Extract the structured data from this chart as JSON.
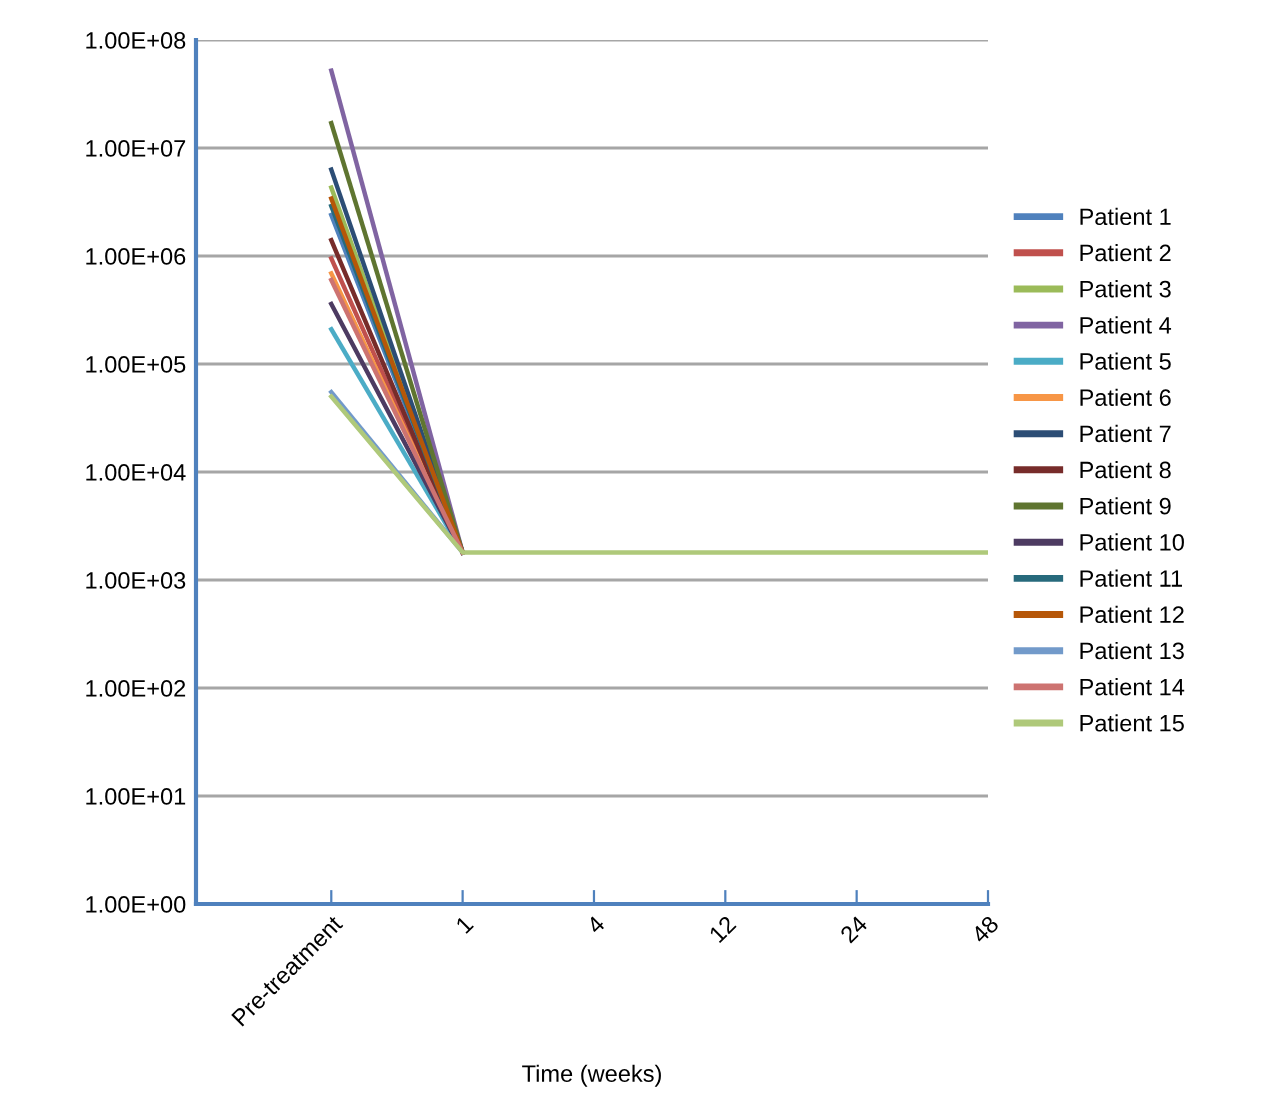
{
  "chart_data": {
    "type": "line",
    "xlabel": "Time (weeks)",
    "categories": [
      "Pre-treatment",
      "1",
      "4",
      "12",
      "24",
      "48"
    ],
    "log": "y",
    "ylim": [
      1,
      100000000
    ],
    "yticks": [
      {
        "value": 1,
        "label": "1.00E+00"
      },
      {
        "value": 10,
        "label": "1.00E+01"
      },
      {
        "value": 100,
        "label": "1.00E+02"
      },
      {
        "value": 1000,
        "label": "1.00E+03"
      },
      {
        "value": 10000,
        "label": "1.00E+04"
      },
      {
        "value": 100000,
        "label": "1.00E+05"
      },
      {
        "value": 1000000,
        "label": "1.00E+06"
      },
      {
        "value": 10000000,
        "label": "1.00E+07"
      },
      {
        "value": 100000000,
        "label": "1.00E+08"
      }
    ],
    "grid": "y",
    "legend": "right",
    "marker": "none",
    "line_style": "solid",
    "series": [
      {
        "name": "Patient 1",
        "color": "#4f81bd",
        "values": [
          2400000,
          1800,
          null,
          null,
          null,
          null
        ]
      },
      {
        "name": "Patient 2",
        "color": "#c0504d",
        "values": [
          950000,
          1800,
          null,
          null,
          null,
          null
        ]
      },
      {
        "name": "Patient 3",
        "color": "#9bbb59",
        "values": [
          4300000,
          1800,
          null,
          null,
          null,
          null
        ]
      },
      {
        "name": "Patient 4",
        "color": "#8064a2",
        "values": [
          52000000,
          1800,
          null,
          null,
          null,
          null
        ]
      },
      {
        "name": "Patient 5",
        "color": "#4bacc6",
        "values": [
          210000,
          1800,
          null,
          null,
          null,
          null
        ]
      },
      {
        "name": "Patient 6",
        "color": "#f79646",
        "values": [
          690000,
          1800,
          null,
          null,
          null,
          null
        ]
      },
      {
        "name": "Patient 7",
        "color": "#2c4d75",
        "values": [
          6300000,
          1800,
          null,
          null,
          null,
          null
        ]
      },
      {
        "name": "Patient 8",
        "color": "#772c2a",
        "values": [
          1400000,
          1800,
          null,
          null,
          null,
          null
        ]
      },
      {
        "name": "Patient 9",
        "color": "#5f7530",
        "values": [
          17000000,
          1800,
          null,
          null,
          null,
          null
        ]
      },
      {
        "name": "Patient 10",
        "color": "#4d3b62",
        "values": [
          360000,
          1800,
          null,
          null,
          null,
          null
        ]
      },
      {
        "name": "Patient 11",
        "color": "#276a7c",
        "values": [
          2900000,
          1800,
          null,
          null,
          null,
          null
        ]
      },
      {
        "name": "Patient 12",
        "color": "#b65708",
        "values": [
          3400000,
          1800,
          null,
          null,
          null,
          null
        ]
      },
      {
        "name": "Patient 13",
        "color": "#729aca",
        "values": [
          55000,
          1800,
          null,
          null,
          null,
          null
        ]
      },
      {
        "name": "Patient 14",
        "color": "#cd7371",
        "values": [
          600000,
          1800,
          null,
          null,
          null,
          null
        ]
      },
      {
        "name": "Patient 15",
        "color": "#afc97a",
        "values": [
          50000,
          1800,
          1800,
          1800,
          1800,
          1800
        ]
      }
    ]
  }
}
